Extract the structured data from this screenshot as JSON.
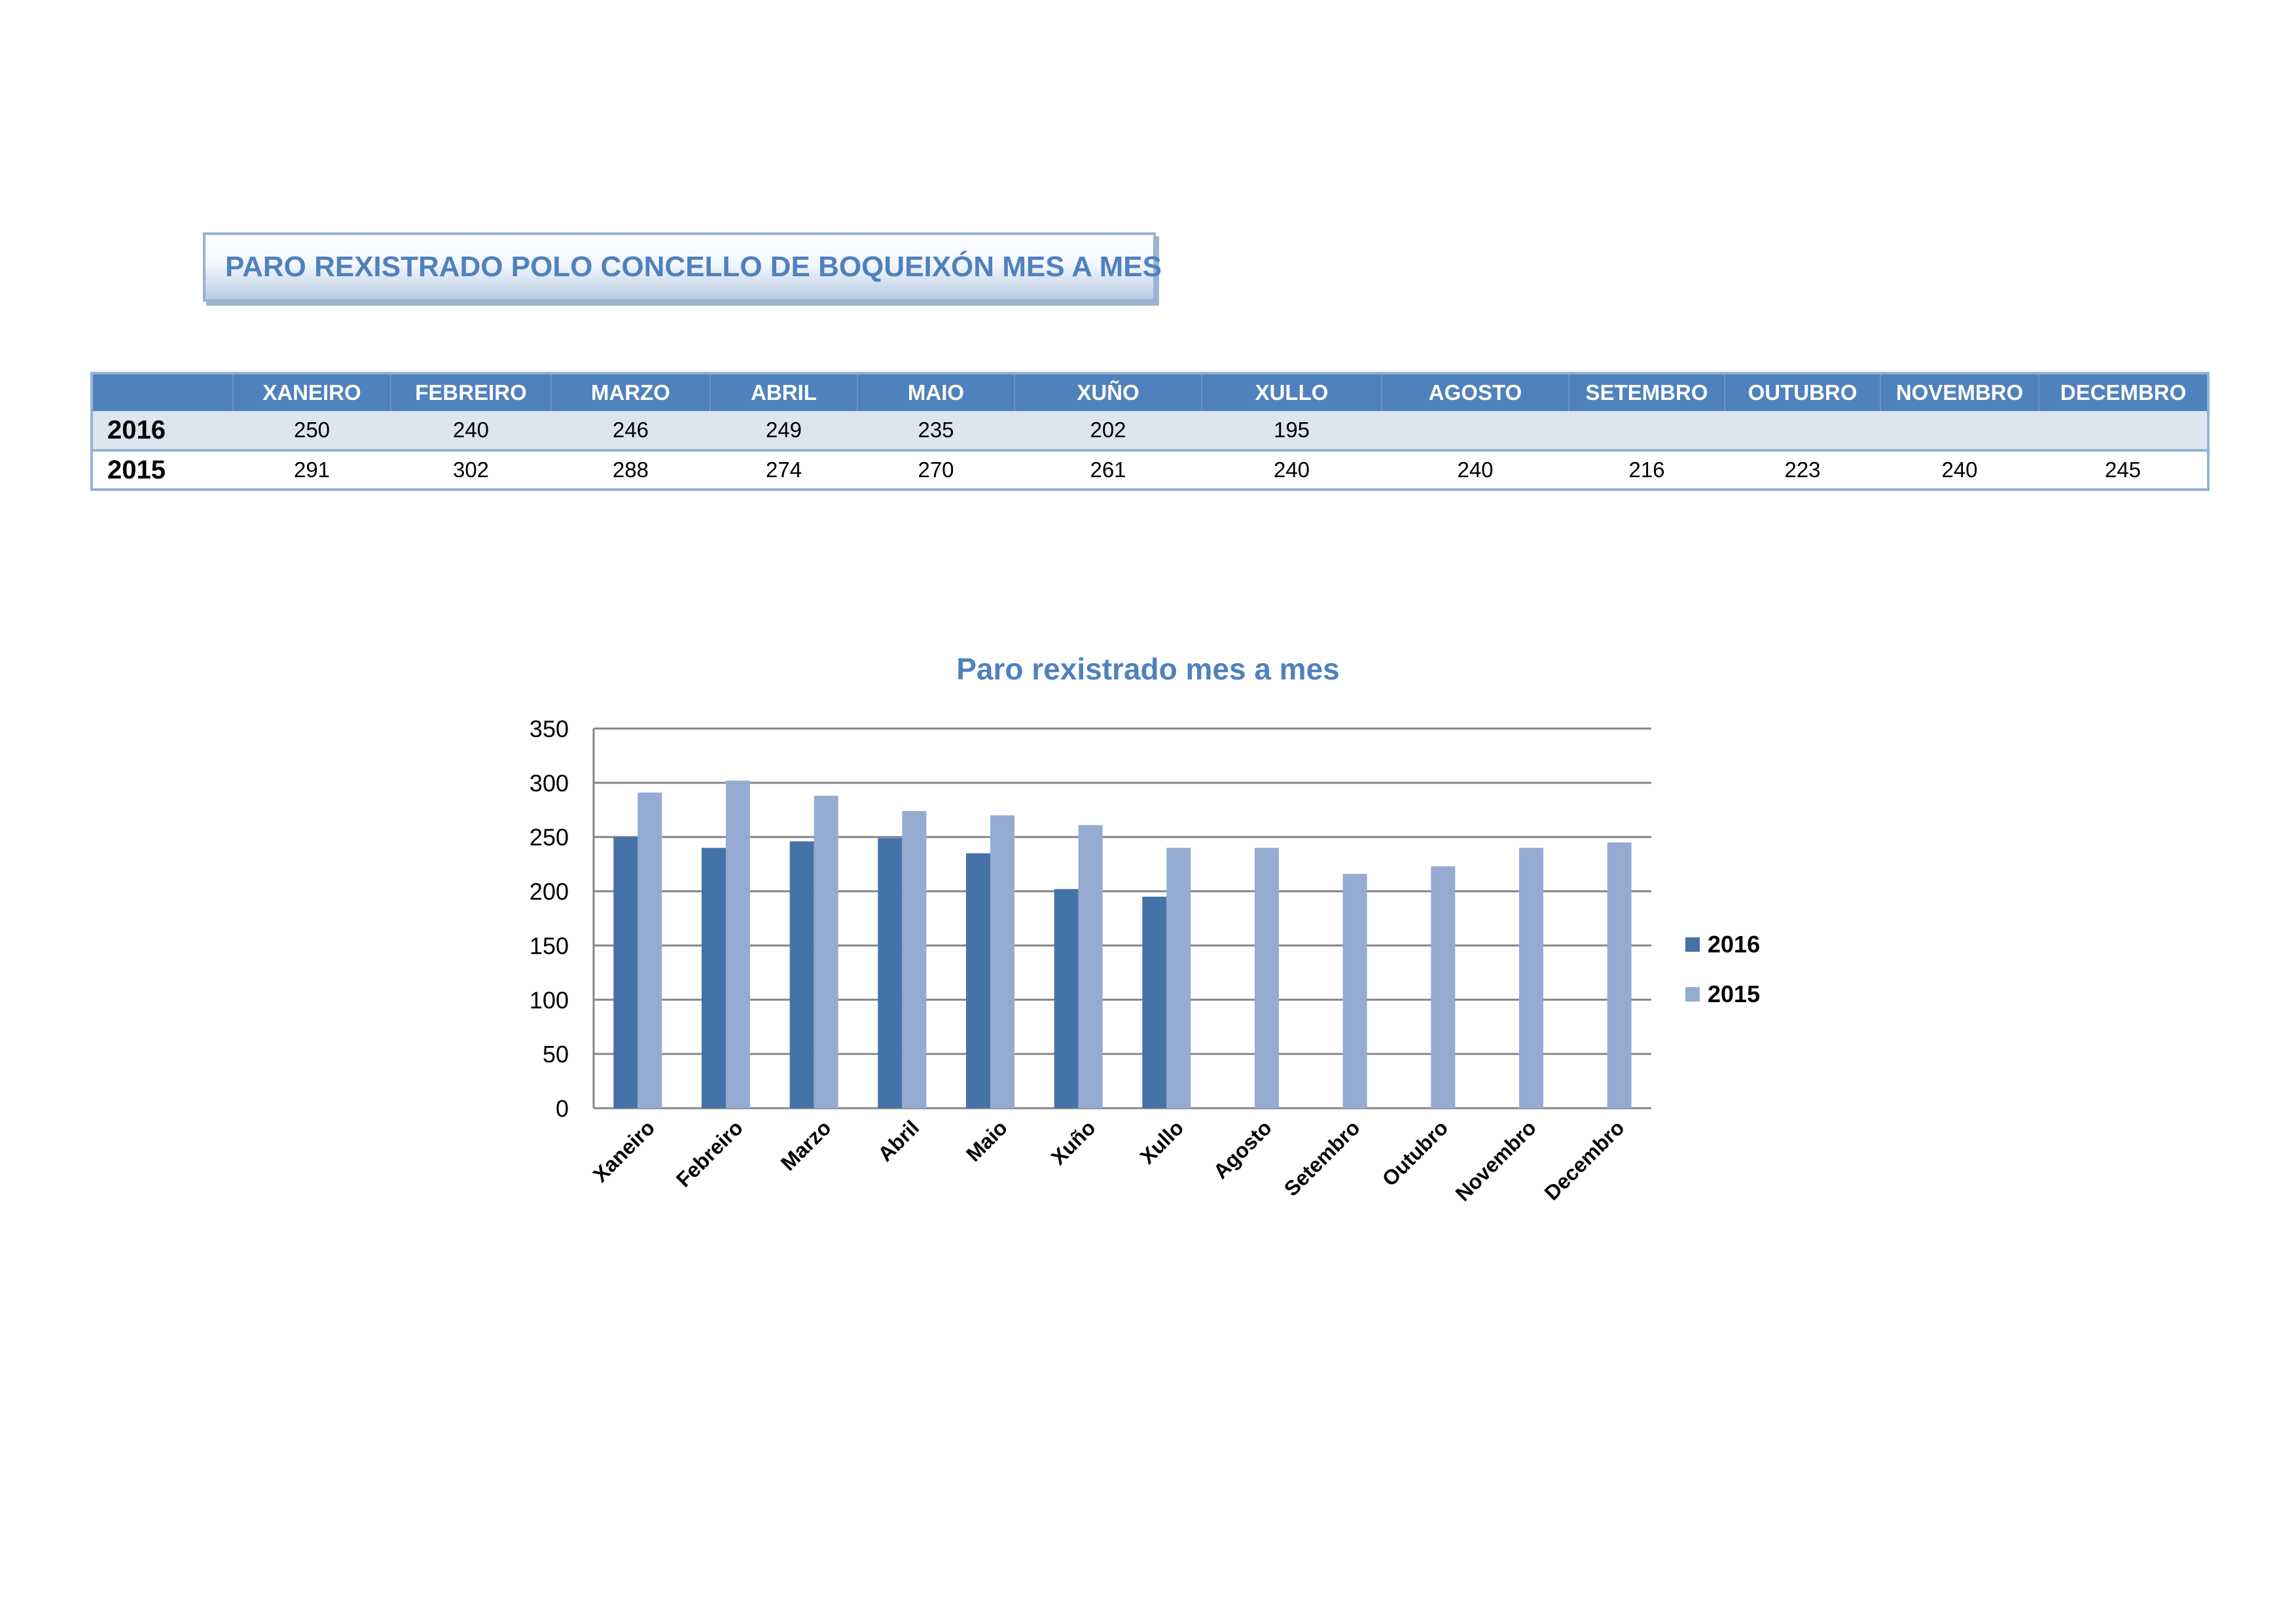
{
  "title": "PARO REXISTRADO POLO CONCELLO DE BOQUEIXÓN MES A MES",
  "table": {
    "columns": [
      "XANEIRO",
      "FEBREIRO",
      "MARZO",
      "ABRIL",
      "MAIO",
      "XUÑO",
      "XULLO",
      "AGOSTO",
      "SETEMBRO",
      "OUTUBRO",
      "NOVEMBRO",
      "DECEMBRO"
    ],
    "rows": [
      {
        "year": "2016",
        "values": [
          "250",
          "240",
          "246",
          "249",
          "235",
          "202",
          "195",
          "",
          "",
          "",
          "",
          ""
        ]
      },
      {
        "year": "2015",
        "values": [
          "291",
          "302",
          "288",
          "274",
          "270",
          "261",
          "240",
          "240",
          "216",
          "223",
          "240",
          "245"
        ]
      }
    ]
  },
  "chart_data": {
    "type": "bar",
    "title": "Paro rexistrado mes a mes",
    "categories": [
      "Xaneiro",
      "Febreiro",
      "Marzo",
      "Abril",
      "Maio",
      "Xuño",
      "Xullo",
      "Agosto",
      "Setembro",
      "Outubro",
      "Novembro",
      "Decembro"
    ],
    "series": [
      {
        "name": "2016",
        "color": "#4572a7",
        "values": [
          250,
          240,
          246,
          249,
          235,
          202,
          195,
          null,
          null,
          null,
          null,
          null
        ]
      },
      {
        "name": "2015",
        "color": "#95abd2",
        "values": [
          291,
          302,
          288,
          274,
          270,
          261,
          240,
          240,
          216,
          223,
          240,
          245
        ]
      }
    ],
    "ylim": [
      0,
      350
    ],
    "yticks": [
      0,
      50,
      100,
      150,
      200,
      250,
      300,
      350
    ],
    "grid": true,
    "legend_position": "right"
  },
  "colors": {
    "header_bg": "#4f81bd",
    "row_alt_bg": "#dce6f1",
    "border": "#95b3d7",
    "title_text": "#4f81bd",
    "gridline": "#868686"
  }
}
